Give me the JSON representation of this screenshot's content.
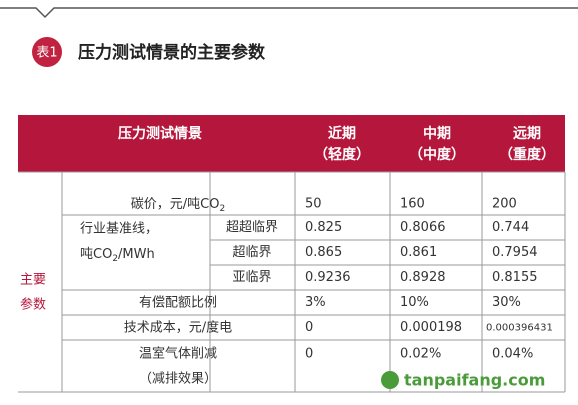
{
  "header": {
    "badge": "表1",
    "title": "压力测试情景的主要参数"
  },
  "table": {
    "columns": [
      {
        "title": "压力测试情景"
      },
      {
        "line1": "近期",
        "line2": "（轻度）"
      },
      {
        "line1": "中期",
        "line2": "（中度）"
      },
      {
        "line1": "远期",
        "line2": "（重度）"
      }
    ],
    "group_label": [
      "主要",
      "参数"
    ],
    "rows": [
      {
        "label": {
          "text": "碳价，元/吨CO",
          "sub": "2"
        },
        "values": [
          "50",
          "160",
          "200"
        ]
      },
      {
        "label": {
          "line1": "行业基准线，",
          "text": "吨CO",
          "sub": "2",
          "tail": "/MWh"
        },
        "sublabel": "超超临界",
        "values": [
          "0.825",
          "0.8066",
          "0.744"
        ]
      },
      {
        "sublabel": "超临界",
        "values": [
          "0.865",
          "0.861",
          "0.7954"
        ]
      },
      {
        "sublabel": "亚临界",
        "values": [
          "0.9236",
          "0.8928",
          "0.8155"
        ]
      },
      {
        "label": {
          "text": "有偿配额比例"
        },
        "values": [
          "3%",
          "10%",
          "30%"
        ]
      },
      {
        "label": {
          "text": "技术成本，元/度电"
        },
        "values": [
          "0",
          "0.000198",
          "0.000396431"
        ]
      },
      {
        "label": {
          "text": "温室气体削减",
          "line2": "（减排效果）"
        },
        "values": [
          "0",
          "0.02%",
          "0.04%"
        ]
      }
    ]
  },
  "watermark": "tanpaifang.com"
}
